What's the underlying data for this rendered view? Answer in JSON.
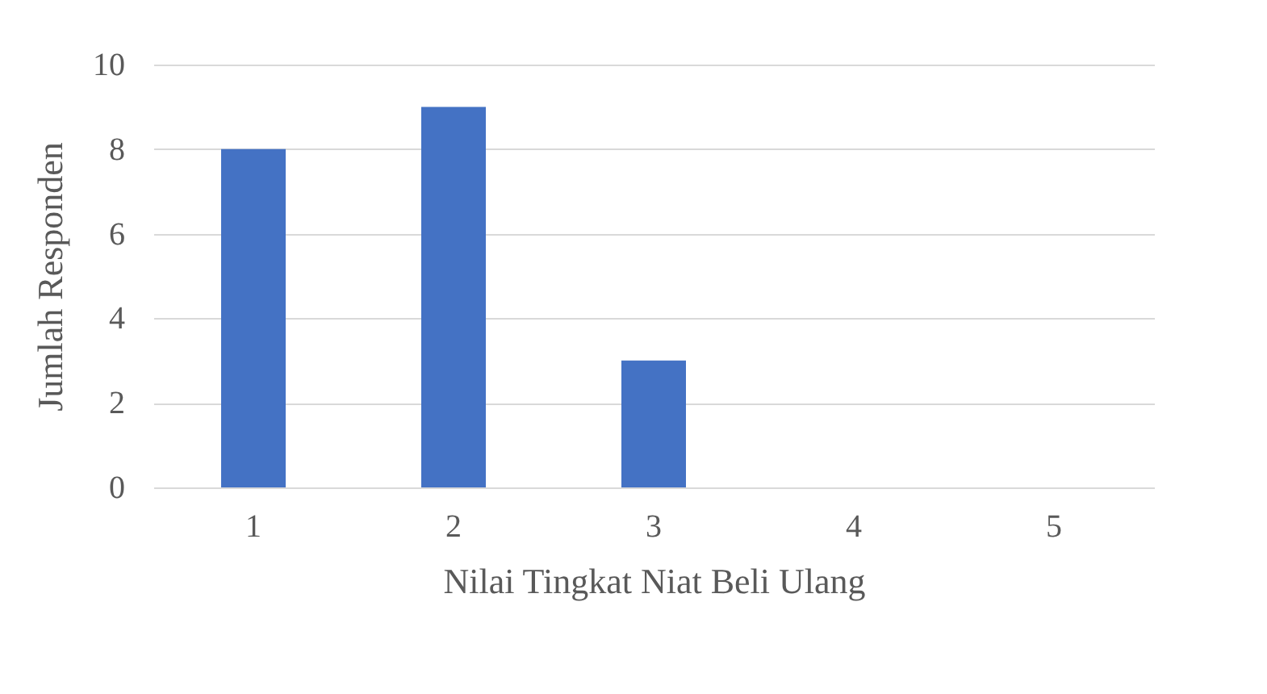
{
  "chart_data": {
    "type": "bar",
    "xlabel": "Nilai Tingkat Niat Beli Ulang",
    "ylabel": "Jumlah Responden",
    "categories": [
      "1",
      "2",
      "3",
      "4",
      "5"
    ],
    "values": [
      8,
      9,
      3,
      0,
      0
    ],
    "color": "#4472c4",
    "ylim": [
      0,
      10
    ],
    "yticks": [
      0,
      2,
      4,
      6,
      8,
      10
    ],
    "grid": "y"
  }
}
